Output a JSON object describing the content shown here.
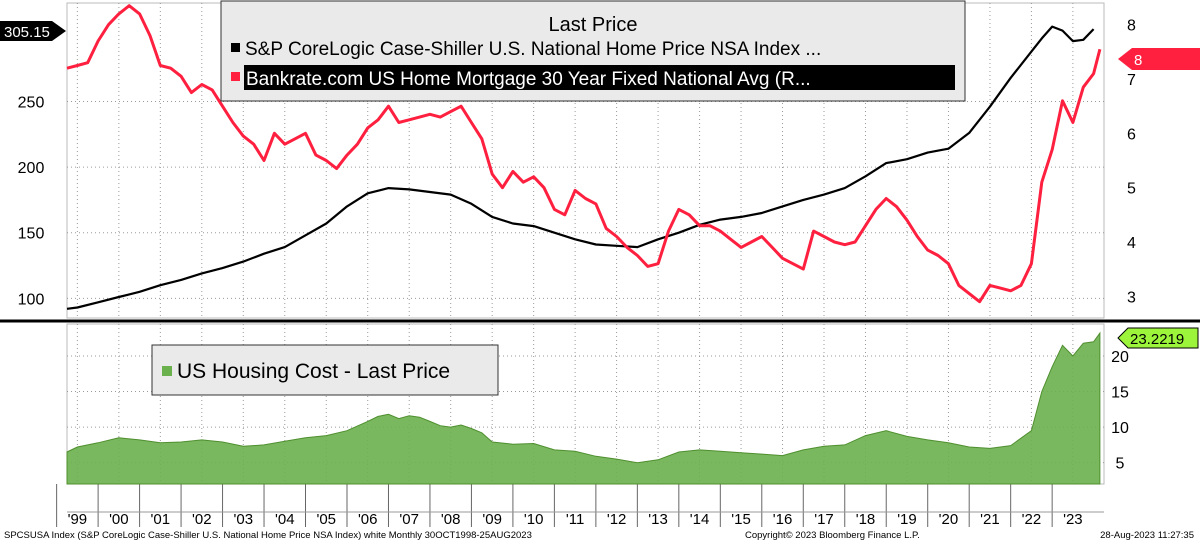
{
  "chart_data": [
    {
      "type": "line",
      "legend_title": "Last Price",
      "legend_placement": "top-center",
      "series": [
        {
          "name": "S&P CoreLogic Case-Shiller U.S. National Home Price NSA Index ...",
          "axis": "left",
          "color": "#000000",
          "last_value_label": "305.15",
          "x": [
            1998.75,
            1999.0,
            1999.5,
            2000.0,
            2000.5,
            2001.0,
            2001.5,
            2002.0,
            2002.5,
            2003.0,
            2003.5,
            2004.0,
            2004.5,
            2005.0,
            2005.5,
            2006.0,
            2006.5,
            2007.0,
            2007.5,
            2008.0,
            2008.5,
            2009.0,
            2009.5,
            2010.0,
            2010.5,
            2011.0,
            2011.5,
            2012.0,
            2012.5,
            2013.0,
            2013.5,
            2014.0,
            2014.5,
            2015.0,
            2015.5,
            2016.0,
            2016.5,
            2017.0,
            2017.5,
            2018.0,
            2018.5,
            2019.0,
            2019.5,
            2020.0,
            2020.5,
            2021.0,
            2021.5,
            2022.0,
            2022.25,
            2022.5,
            2022.75,
            2023.0,
            2023.25,
            2023.5
          ],
          "y": [
            92,
            93,
            97,
            101,
            105,
            110,
            114,
            119,
            123,
            128,
            134,
            139,
            148,
            157,
            170,
            180,
            184,
            183,
            181,
            179,
            172,
            162,
            157,
            155,
            150,
            145,
            141,
            140,
            139,
            145,
            150,
            156,
            160,
            162,
            165,
            170,
            175,
            179,
            184,
            193,
            203,
            206,
            211,
            214,
            226,
            246,
            268,
            288,
            298,
            307,
            304,
            296,
            297,
            305.15
          ]
        },
        {
          "name": "Bankrate.com US Home Mortgage 30 Year Fixed National Avg  (R...",
          "axis": "right",
          "color": "#ff1f3f",
          "last_value_label": "8",
          "x": [
            1998.75,
            1999.0,
            1999.25,
            1999.5,
            1999.75,
            2000.0,
            2000.25,
            2000.5,
            2000.75,
            2001.0,
            2001.25,
            2001.5,
            2001.75,
            2002.0,
            2002.25,
            2002.5,
            2002.75,
            2003.0,
            2003.25,
            2003.5,
            2003.75,
            2004.0,
            2004.25,
            2004.5,
            2004.75,
            2005.0,
            2005.25,
            2005.5,
            2005.75,
            2006.0,
            2006.25,
            2006.5,
            2006.75,
            2007.0,
            2007.25,
            2007.5,
            2007.75,
            2008.0,
            2008.25,
            2008.5,
            2008.75,
            2009.0,
            2009.25,
            2009.5,
            2009.75,
            2010.0,
            2010.25,
            2010.5,
            2010.75,
            2011.0,
            2011.25,
            2011.5,
            2011.75,
            2012.0,
            2012.25,
            2012.5,
            2012.75,
            2013.0,
            2013.25,
            2013.5,
            2013.75,
            2014.0,
            2014.25,
            2014.5,
            2014.75,
            2015.0,
            2015.25,
            2015.5,
            2015.75,
            2016.0,
            2016.25,
            2016.5,
            2016.75,
            2017.0,
            2017.25,
            2017.5,
            2017.75,
            2018.0,
            2018.25,
            2018.5,
            2018.75,
            2019.0,
            2019.25,
            2019.5,
            2019.75,
            2020.0,
            2020.25,
            2020.5,
            2020.75,
            2021.0,
            2021.25,
            2021.5,
            2021.75,
            2022.0,
            2022.25,
            2022.5,
            2022.75,
            2023.0,
            2023.25,
            2023.5,
            2023.65
          ],
          "y": [
            7.2,
            7.25,
            7.3,
            7.7,
            8.0,
            8.2,
            8.35,
            8.2,
            7.8,
            7.25,
            7.2,
            7.05,
            6.75,
            6.9,
            6.8,
            6.5,
            6.2,
            5.95,
            5.8,
            5.5,
            6.0,
            5.8,
            5.9,
            6.0,
            5.6,
            5.5,
            5.35,
            5.6,
            5.8,
            6.1,
            6.25,
            6.5,
            6.2,
            6.25,
            6.3,
            6.35,
            6.3,
            6.4,
            6.5,
            6.2,
            5.9,
            5.25,
            5.0,
            5.3,
            5.1,
            5.2,
            5.0,
            4.6,
            4.5,
            4.95,
            4.8,
            4.7,
            4.25,
            4.1,
            3.9,
            3.75,
            3.55,
            3.6,
            4.2,
            4.6,
            4.5,
            4.3,
            4.3,
            4.2,
            4.05,
            3.9,
            4.0,
            4.1,
            3.9,
            3.7,
            3.6,
            3.5,
            4.2,
            4.1,
            4.0,
            3.95,
            4.0,
            4.3,
            4.6,
            4.8,
            4.65,
            4.4,
            4.1,
            3.85,
            3.75,
            3.6,
            3.2,
            3.05,
            2.9,
            3.2,
            3.15,
            3.1,
            3.2,
            3.6,
            5.1,
            5.7,
            6.6,
            6.2,
            6.85,
            7.1,
            7.55
          ]
        }
      ],
      "left_axis": {
        "ticks": [
          100,
          150,
          200,
          250
        ],
        "ylim": [
          85,
          325
        ]
      },
      "right_axis": {
        "ticks": [
          3,
          4,
          5,
          6,
          7,
          8
        ],
        "ylim": [
          2.6,
          8.4
        ]
      },
      "grid": "dotted"
    },
    {
      "type": "area",
      "legend_title": "US Housing Cost - Last Price",
      "legend_placement": "top-left",
      "series": [
        {
          "name": "US Housing Cost - Last Price",
          "color": "#6ab04c",
          "last_value_label": "23.2219",
          "x": [
            1998.75,
            1999.0,
            1999.5,
            2000.0,
            2000.5,
            2001.0,
            2001.5,
            2002.0,
            2002.5,
            2003.0,
            2003.5,
            2004.0,
            2004.5,
            2005.0,
            2005.5,
            2006.0,
            2006.25,
            2006.5,
            2006.75,
            2007.0,
            2007.25,
            2007.5,
            2007.75,
            2008.0,
            2008.25,
            2008.5,
            2008.75,
            2009.0,
            2009.5,
            2010.0,
            2010.5,
            2011.0,
            2011.5,
            2012.0,
            2012.5,
            2013.0,
            2013.5,
            2014.0,
            2014.5,
            2015.0,
            2015.5,
            2016.0,
            2016.5,
            2017.0,
            2017.5,
            2018.0,
            2018.5,
            2019.0,
            2019.5,
            2020.0,
            2020.5,
            2021.0,
            2021.5,
            2022.0,
            2022.25,
            2022.5,
            2022.75,
            2023.0,
            2023.25,
            2023.5,
            2023.65
          ],
          "y": [
            6.5,
            7.2,
            7.8,
            8.5,
            8.2,
            7.8,
            7.9,
            8.2,
            7.9,
            7.3,
            7.5,
            8.0,
            8.5,
            8.8,
            9.5,
            10.8,
            11.5,
            11.8,
            11.2,
            11.6,
            11.4,
            10.8,
            10.2,
            10.0,
            10.3,
            9.8,
            9.2,
            7.9,
            7.6,
            7.7,
            6.8,
            6.6,
            5.9,
            5.5,
            5.0,
            5.4,
            6.5,
            6.8,
            6.6,
            6.4,
            6.2,
            6.0,
            6.8,
            7.3,
            7.5,
            8.8,
            9.5,
            8.7,
            8.2,
            7.8,
            7.2,
            7.0,
            7.4,
            9.5,
            15.0,
            18.5,
            21.5,
            20.0,
            21.8,
            22.0,
            23.2219
          ]
        }
      ],
      "right_axis": {
        "ticks": [
          5,
          10,
          15,
          20
        ],
        "ylim": [
          2,
          24.5
        ]
      },
      "grid": "dotted"
    }
  ],
  "x_axis": {
    "tick_labels": [
      "'99",
      "'00",
      "'01",
      "'02",
      "'03",
      "'04",
      "'05",
      "'06",
      "'07",
      "'08",
      "'09",
      "'10",
      "'11",
      "'12",
      "'13",
      "'14",
      "'15",
      "'16",
      "'17",
      "'18",
      "'19",
      "'20",
      "'21",
      "'22",
      "'23"
    ],
    "tick_values": [
      1999,
      2000,
      2001,
      2002,
      2003,
      2004,
      2005,
      2006,
      2007,
      2008,
      2009,
      2010,
      2011,
      2012,
      2013,
      2014,
      2015,
      2016,
      2017,
      2018,
      2019,
      2020,
      2021,
      2022,
      2023
    ]
  },
  "colors": {
    "black_line": "#000000",
    "red_line": "#ff1f3f",
    "green_area": "#6ab04c",
    "green_badge": "#9cf53a"
  },
  "footer": {
    "left": "SPCSUSA Index (S&P CoreLogic Case-Shiller U.S. National Home Price NSA Index) white  Monthly 30OCT1998-25AUG2023",
    "center": "Copyright© 2023 Bloomberg Finance L.P.",
    "right": "28-Aug-2023 11:27:35"
  }
}
